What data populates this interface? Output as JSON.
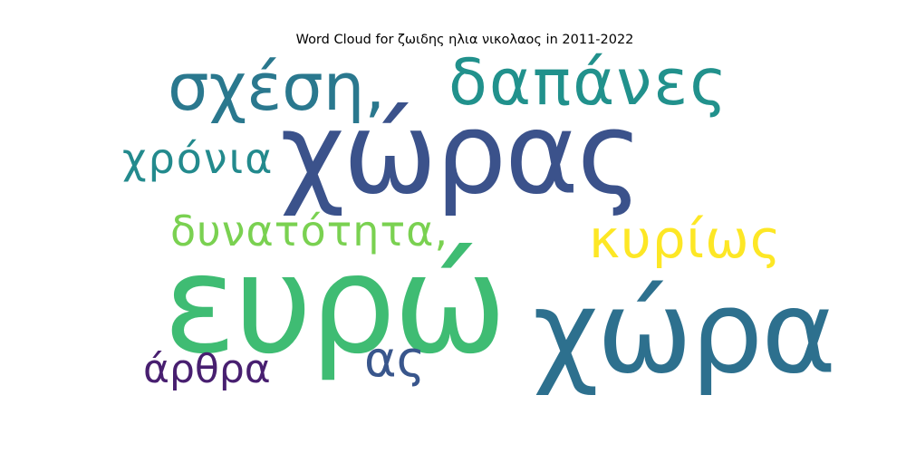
{
  "title": "Word Cloud for ζωιδης ηλια νικολαος in 2011-2022",
  "words": {
    "xoras": {
      "text": "χώρας",
      "color": "#3b528b"
    },
    "evro": {
      "text": "ευρώ",
      "color": "#3fbc73"
    },
    "xora": {
      "text": "χώρα",
      "color": "#2d708e"
    },
    "sxesi": {
      "text": "σχέση,",
      "color": "#2a788e"
    },
    "dapanes": {
      "text": "δαπάνες",
      "color": "#21918c"
    },
    "kyrios": {
      "text": "κυρίως",
      "color": "#fde725"
    },
    "dynatotita": {
      "text": "δυνατότητα,",
      "color": "#7ad151"
    },
    "xronia": {
      "text": "χρόνια",
      "color": "#238a8d"
    },
    "arthra": {
      "text": "άρθρα",
      "color": "#481f70"
    },
    "as": {
      "text": "ας",
      "color": "#39568c"
    }
  }
}
